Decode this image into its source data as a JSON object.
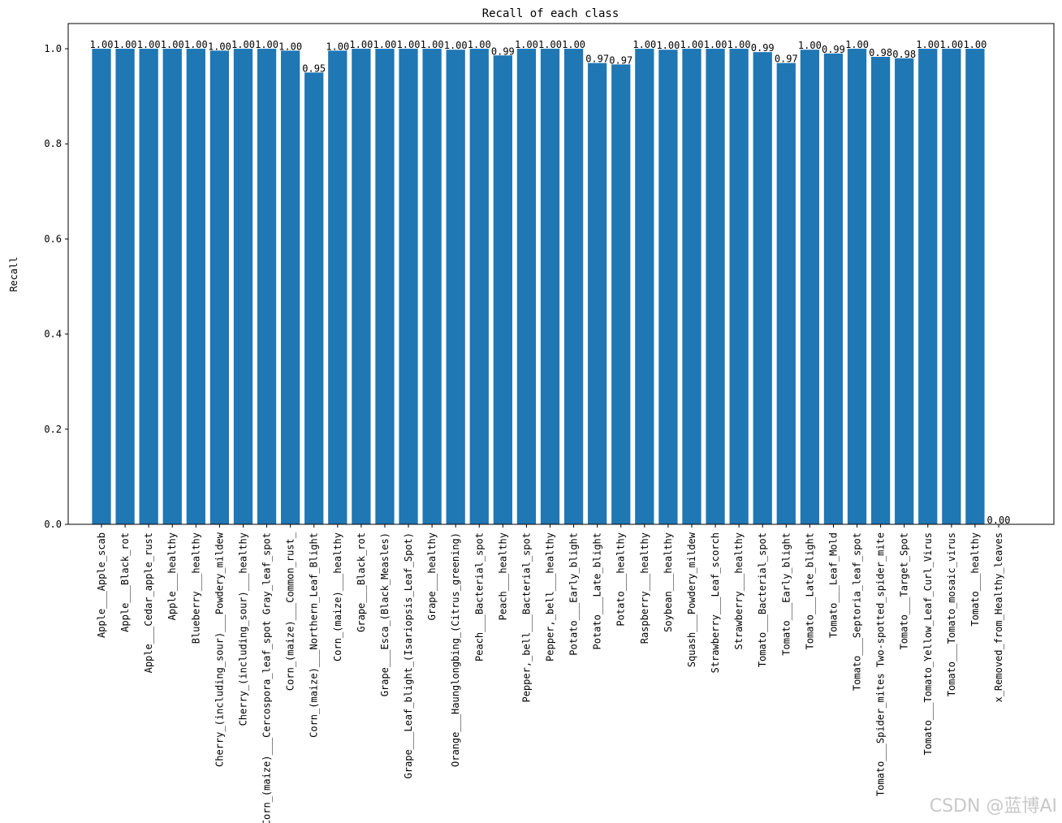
{
  "chart_data": {
    "type": "bar",
    "title": "Recall of each class",
    "y_label": "Recall",
    "color": "#1f77b4",
    "categories": [
      "Apple___Apple_scab",
      "Apple___Black_rot",
      "Apple___Cedar_apple_rust",
      "Apple___healthy",
      "Blueberry___healthy",
      "Cherry_(including_sour)___Powdery_mildew",
      "Cherry_(including_sour)___healthy",
      "Corn_(maize)___Cercospora_leaf_spot Gray_leaf_spot",
      "Corn_(maize)___Common_rust_",
      "Corn_(maize)___Northern_Leaf_Blight",
      "Corn_(maize)___healthy",
      "Grape___Black_rot",
      "Grape___Esca_(Black_Measles)",
      "Grape___Leaf_blight_(Isariopsis_Leaf_Spot)",
      "Grape___healthy",
      "Orange___Haunglongbing_(Citrus_greening)",
      "Peach___Bacterial_spot",
      "Peach___healthy",
      "Pepper,_bell___Bacterial_spot",
      "Pepper,_bell___healthy",
      "Potato___Early_blight",
      "Potato___Late_blight",
      "Potato___healthy",
      "Raspberry___healthy",
      "Soybean___healthy",
      "Squash___Powdery_mildew",
      "Strawberry___Leaf_scorch",
      "Strawberry___healthy",
      "Tomato___Bacterial_spot",
      "Tomato___Early_blight",
      "Tomato___Late_blight",
      "Tomato___Leaf_Mold",
      "Tomato___Septoria_leaf_spot",
      "Tomato___Spider_mites Two-spotted_spider_mite",
      "Tomato___Target_Spot",
      "Tomato___Tomato_Yellow_Leaf_Curl_Virus",
      "Tomato___Tomato_mosaic_virus",
      "Tomato___healthy",
      "x_Removed_from_Healthy_leaves"
    ],
    "values": [
      1,
      1,
      1,
      1,
      1,
      0.996,
      1,
      1,
      0.996,
      0.95,
      0.996,
      1,
      1,
      1,
      1,
      0.998,
      1,
      0.986,
      1,
      1,
      1,
      0.97,
      0.967,
      1,
      0.998,
      1,
      1,
      1,
      0.993,
      0.97,
      0.998,
      0.99,
      1,
      0.983,
      0.98,
      1,
      1,
      1,
      0
    ],
    "value_labels": [
      "1.00",
      "1.00",
      "1.00",
      "1.00",
      "1.00",
      "1.00",
      "1.00",
      "1.00",
      "1.00",
      "0.95",
      "1.00",
      "1.00",
      "1.00",
      "1.00",
      "1.00",
      "1.00",
      "1.00",
      "0.99",
      "1.00",
      "1.00",
      "1.00",
      "0.97",
      "0.97",
      "1.00",
      "1.00",
      "1.00",
      "1.00",
      "1.00",
      "0.99",
      "0.97",
      "1.00",
      "0.99",
      "1.00",
      "0.98",
      "0.98",
      "1.00",
      "1.00",
      "1.00",
      "0.00"
    ],
    "ylim": [
      0,
      1.053
    ],
    "yticks": [
      {
        "value": 0,
        "label": "0.0"
      },
      {
        "value": 0.2,
        "label": "0.2"
      },
      {
        "value": 0.4,
        "label": "0.4"
      },
      {
        "value": 0.6,
        "label": "0.6"
      },
      {
        "value": 0.8,
        "label": "0.8"
      },
      {
        "value": 1,
        "label": "1.0"
      }
    ],
    "grid": false
  },
  "watermark": "CSDN @蓝博AI"
}
